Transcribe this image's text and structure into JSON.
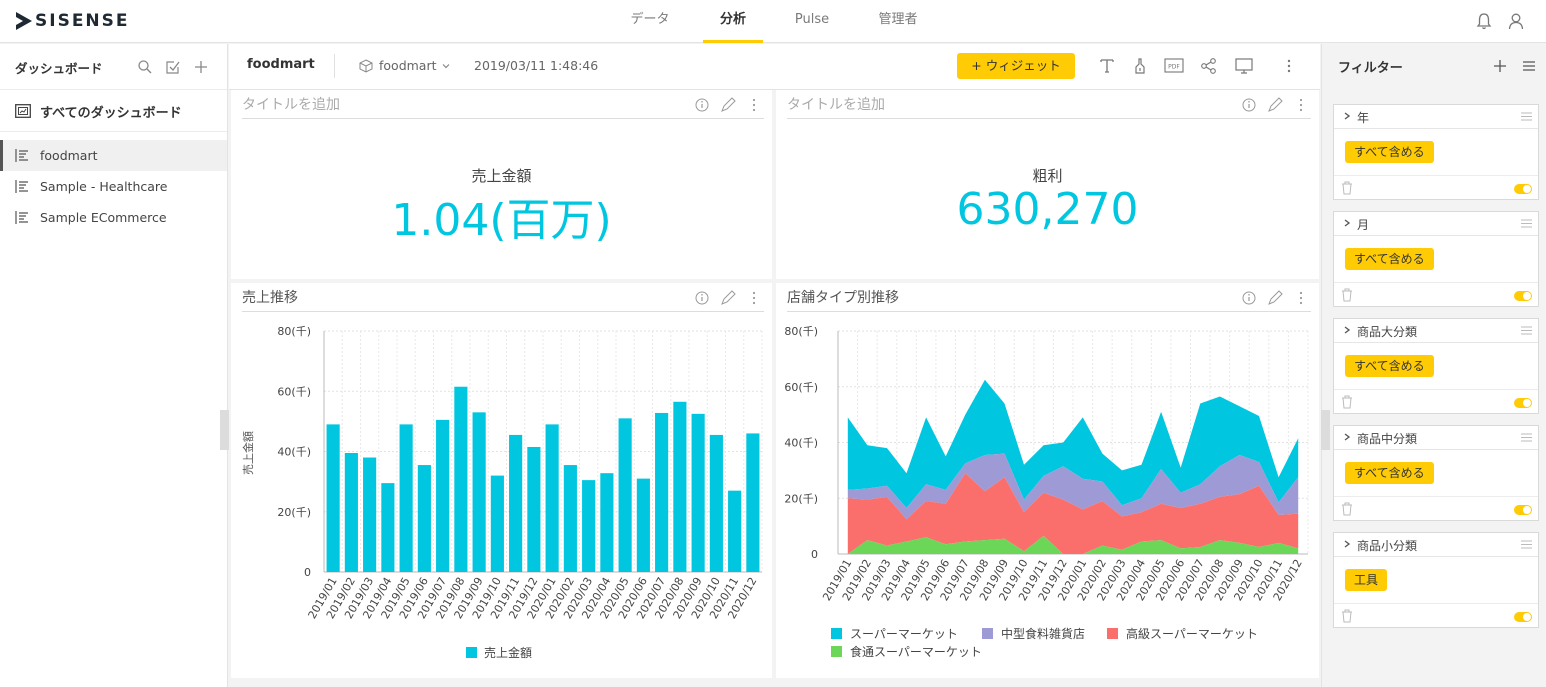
{
  "app": {
    "logo_text": "SISENSE"
  },
  "nav": {
    "tabs": [
      "データ",
      "分析",
      "Pulse",
      "管理者"
    ],
    "active_index": 1
  },
  "sidebar": {
    "title": "ダッシュボード",
    "all_label": "すべてのダッシュボード",
    "items": [
      {
        "label": "foodmart",
        "active": true
      },
      {
        "label": "Sample - Healthcare",
        "active": false
      },
      {
        "label": "Sample ECommerce",
        "active": false
      }
    ]
  },
  "dashboard": {
    "name": "foodmart",
    "datasource": "foodmart",
    "timestamp": "2019/03/11 1:48:46",
    "add_widget_label": "+ ウィジェット"
  },
  "widgets": {
    "kpi1": {
      "title": "タイトルを追加",
      "label": "売上金額",
      "value": "1.04(百万)"
    },
    "kpi2": {
      "title": "タイトルを追加",
      "label": "粗利",
      "value": "630,270"
    },
    "bar": {
      "title": "売上推移"
    },
    "area": {
      "title": "店舗タイプ別推移"
    }
  },
  "filters": {
    "title": "フィルター",
    "items": [
      {
        "name": "年",
        "value": "すべて含める"
      },
      {
        "name": "月",
        "value": "すべて含める"
      },
      {
        "name": "商品大分類",
        "value": "すべて含める"
      },
      {
        "name": "商品中分類",
        "value": "すべて含める"
      },
      {
        "name": "商品小分類",
        "value": "工具"
      }
    ]
  },
  "colors": {
    "accent": "#ffcb05",
    "primary_series": "#00c6e0",
    "supermarket": "#00c6e0",
    "mid_grocery": "#9e9ad6",
    "deluxe_supermarket": "#fa6f6b",
    "gourmet_supermarket": "#6cd658"
  },
  "chart_data": [
    {
      "type": "bar",
      "ylabel": "売上金額",
      "categories": [
        "2019/01",
        "2019/02",
        "2019/03",
        "2019/04",
        "2019/05",
        "2019/06",
        "2019/07",
        "2019/08",
        "2019/09",
        "2019/10",
        "2019/11",
        "2019/12",
        "2020/01",
        "2020/02",
        "2020/03",
        "2020/04",
        "2020/05",
        "2020/06",
        "2020/07",
        "2020/08",
        "2020/09",
        "2020/10",
        "2020/11",
        "2020/12"
      ],
      "series": [
        {
          "name": "売上金額",
          "values": [
            49000,
            39500,
            38000,
            29500,
            49000,
            35500,
            50500,
            61500,
            53000,
            32000,
            45500,
            41500,
            49000,
            35500,
            30500,
            32800,
            51000,
            31000,
            52800,
            56500,
            52500,
            45500,
            27000,
            46000
          ]
        }
      ],
      "ylim": [
        0,
        80000
      ],
      "yticks": [
        "0",
        "20(千)",
        "40(千)",
        "60(千)",
        "80(千)"
      ],
      "legend": "bottom",
      "grid": true
    },
    {
      "type": "area",
      "stacked": true,
      "categories": [
        "2019/01",
        "2019/02",
        "2019/03",
        "2019/04",
        "2019/05",
        "2019/06",
        "2019/07",
        "2019/08",
        "2019/09",
        "2019/10",
        "2019/11",
        "2019/12",
        "2020/01",
        "2020/02",
        "2020/03",
        "2020/04",
        "2020/05",
        "2020/06",
        "2020/07",
        "2020/08",
        "2020/09",
        "2020/10",
        "2020/11",
        "2020/12"
      ],
      "series": [
        {
          "name": "食通スーパーマーケット",
          "values": [
            0,
            5000,
            3000,
            4500,
            6000,
            3500,
            4500,
            5000,
            5500,
            1000,
            6500,
            0,
            0,
            3000,
            1500,
            4500,
            5000,
            2000,
            2500,
            5000,
            4000,
            2500,
            4000,
            2000
          ]
        },
        {
          "name": "高級スーパーマーケット",
          "values": [
            20000,
            14500,
            17500,
            8000,
            13000,
            14500,
            24500,
            17500,
            22000,
            14000,
            15500,
            19500,
            16000,
            16000,
            12000,
            10500,
            13000,
            14500,
            15500,
            15500,
            17500,
            22000,
            10000,
            12500
          ]
        },
        {
          "name": "中型食料雑貨店",
          "values": [
            3000,
            4000,
            4000,
            4000,
            6000,
            5000,
            3500,
            13000,
            8500,
            4500,
            6000,
            12000,
            11000,
            7000,
            4000,
            5000,
            12500,
            5500,
            7000,
            11000,
            14000,
            8500,
            4500,
            13000
          ]
        },
        {
          "name": "スーパーマーケット",
          "values": [
            26000,
            15500,
            13500,
            12500,
            24000,
            12000,
            17500,
            27000,
            18000,
            12500,
            11000,
            8500,
            22000,
            10000,
            12500,
            12000,
            20500,
            9000,
            29000,
            25000,
            17500,
            16500,
            9000,
            14000
          ]
        }
      ],
      "ylim": [
        0,
        80000
      ],
      "yticks": [
        "0",
        "20(千)",
        "40(千)",
        "60(千)",
        "80(千)"
      ],
      "legend": "bottom",
      "grid": true
    }
  ]
}
